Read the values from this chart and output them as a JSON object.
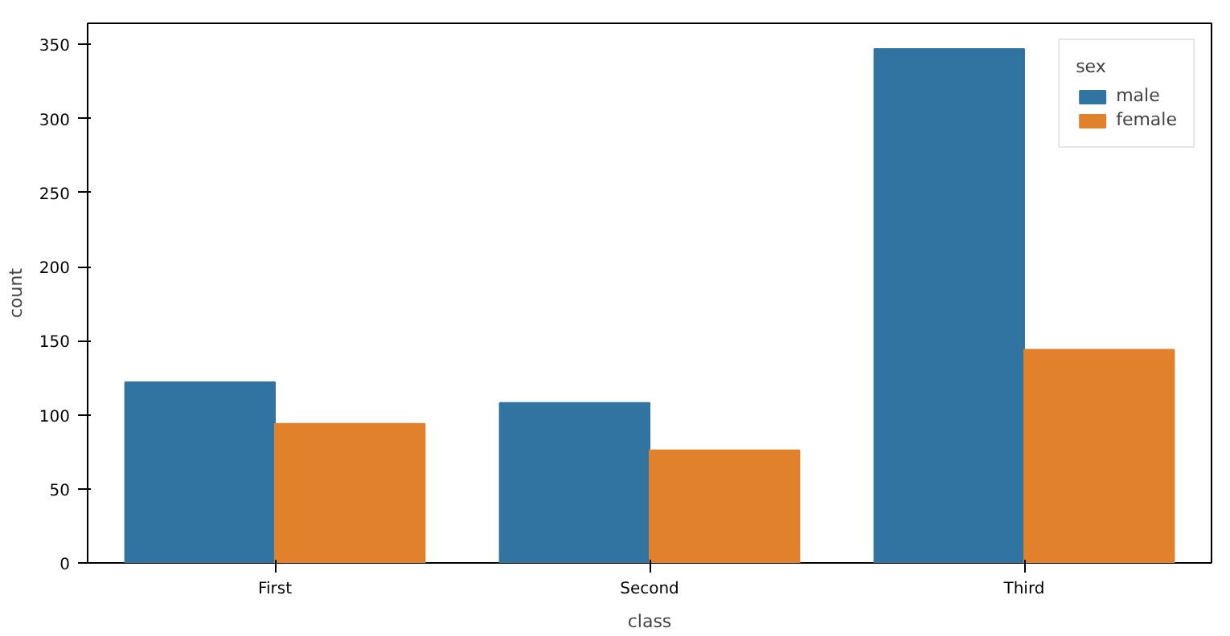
{
  "chart_data": {
    "type": "bar",
    "xlabel": "class",
    "ylabel": "count",
    "legend_title": "sex",
    "categories": [
      "First",
      "Second",
      "Third"
    ],
    "series": [
      {
        "name": "male",
        "color": "#3274a1",
        "values": [
          122,
          108,
          347
        ]
      },
      {
        "name": "female",
        "color": "#e1812c",
        "values": [
          94,
          76,
          144
        ]
      }
    ],
    "ylim": [
      0,
      364.35
    ],
    "yticks": [
      0,
      50,
      100,
      150,
      200,
      250,
      300,
      350
    ],
    "grid": false,
    "legend": "top right"
  }
}
